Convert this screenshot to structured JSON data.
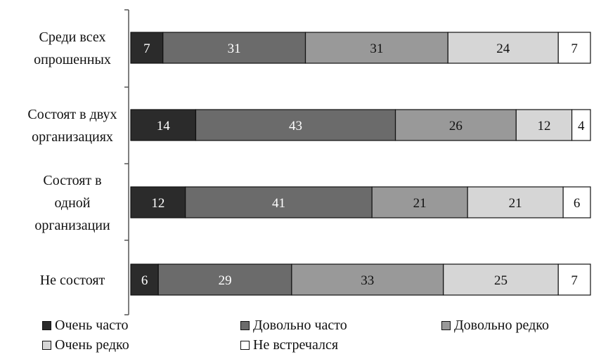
{
  "chart_data": {
    "type": "bar",
    "orientation": "horizontal",
    "stacked": true,
    "percent": true,
    "title": "",
    "xlabel": "",
    "ylabel": "",
    "categories": [
      "Среди всех опрошенных",
      "Состоят в двух организациях",
      "Состоят в одной организации",
      "Не состоят"
    ],
    "category_lines": [
      [
        "Среди всех",
        "опрошенных"
      ],
      [
        "Состоят в двух",
        "организациях"
      ],
      [
        "Состоят в",
        "одной",
        "организации"
      ],
      [
        "Не состоят"
      ]
    ],
    "series": [
      {
        "name": "Очень часто",
        "values": [
          7,
          14,
          12,
          6
        ],
        "color": "#2b2b2b",
        "label_color": "#ffffff"
      },
      {
        "name": "Довольно часто",
        "values": [
          31,
          43,
          41,
          29
        ],
        "color": "#6b6b6b",
        "label_color": "#ffffff"
      },
      {
        "name": "Довольно редко",
        "values": [
          31,
          26,
          21,
          33
        ],
        "color": "#999999",
        "label_color": "#111111"
      },
      {
        "name": "Очень редко",
        "values": [
          24,
          12,
          21,
          25
        ],
        "color": "#d6d6d6",
        "label_color": "#111111"
      },
      {
        "name": "Не встречался",
        "values": [
          7,
          4,
          6,
          7
        ],
        "color": "#ffffff",
        "label_color": "#111111"
      }
    ],
    "legend_position": "bottom",
    "grid": false
  }
}
